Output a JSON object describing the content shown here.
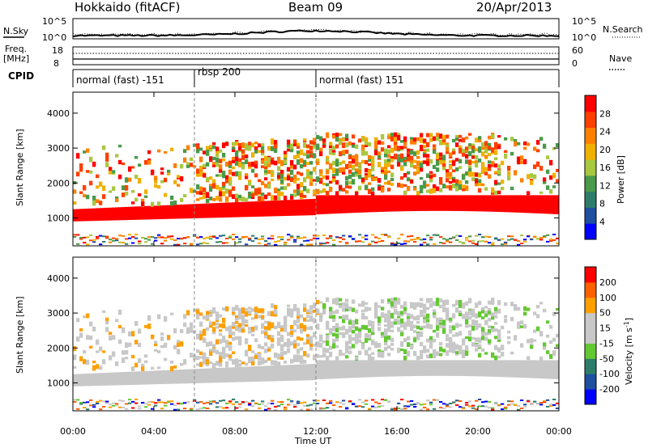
{
  "header": {
    "station": "Hokkaido (fitACF)",
    "beam": "Beam 09",
    "date": "20/Apr/2013"
  },
  "top_panels": {
    "nsky_label": "N.Sky",
    "nsky_ticks": [
      "10^5",
      "10^0"
    ],
    "nsearch_label": "N.Search",
    "right_ticks_top": [
      "10^5",
      "10^0"
    ],
    "freq_label_line1": "Freq.",
    "freq_label_line2": "[MHz]",
    "freq_ticks": [
      "18",
      "8"
    ],
    "nave_label": "Nave",
    "nave_ticks": [
      "60",
      "0"
    ],
    "cpid_label": "CPID"
  },
  "cpid_segments": [
    {
      "label": "normal (fast) -151",
      "start_h": 0,
      "end_h": 6
    },
    {
      "label": "rbsp 200",
      "start_h": 6,
      "end_h": 12
    },
    {
      "label": "normal (fast) 151",
      "start_h": 12,
      "end_h": 24
    }
  ],
  "colors": {
    "power_scale": [
      "#0000ff",
      "#1f4fa0",
      "#2e7d6b",
      "#4a9a4a",
      "#a8c840",
      "#f0b000",
      "#ff8000",
      "#ff4000",
      "#ff0000"
    ],
    "velocity_scale": [
      "#0000ff",
      "#1f4fa0",
      "#2e7d6b",
      "#64c832",
      "#c8c8c8",
      "#c8c8c8",
      "#ffa000",
      "#ff6000",
      "#ff0000"
    ]
  },
  "chart_data": [
    {
      "type": "heatmap",
      "name": "power",
      "ylabel": "Slant Range [km]",
      "yticks": [
        "1000",
        "2000",
        "3000",
        "4000"
      ],
      "ylim": [
        200,
        4600
      ],
      "xlim": [
        0,
        24
      ],
      "colorbar_label": "Power [dB]",
      "colorbar_ticks": [
        "4",
        "8",
        "12",
        "16",
        "20",
        "24",
        "28"
      ],
      "features": [
        {
          "desc": "strong band",
          "range_km": [
            900,
            1300
          ],
          "time_h": [
            0,
            11.8
          ],
          "level": "28"
        },
        {
          "desc": "band after 12UT",
          "range_km": [
            1100,
            1650
          ],
          "time_h": [
            12,
            24
          ],
          "level": "28"
        },
        {
          "desc": "scattered echoes",
          "range_km": [
            1500,
            3200
          ],
          "time_h": [
            6,
            21
          ],
          "level": "20"
        }
      ]
    },
    {
      "type": "heatmap",
      "name": "velocity",
      "ylabel": "Slant Range [km]",
      "yticks": [
        "1000",
        "2000",
        "3000",
        "4000"
      ],
      "ylim": [
        200,
        4600
      ],
      "xlim": [
        0,
        24
      ],
      "xticks": [
        "00:00",
        "04:00",
        "08:00",
        "12:00",
        "16:00",
        "20:00",
        "00:00"
      ],
      "xlabel": "Time UT",
      "colorbar_label": "Velocity [m s^-1]",
      "colorbar_ticks": [
        "200",
        "100",
        "50",
        "15",
        "-15",
        "-50",
        "-100",
        "-200"
      ]
    }
  ]
}
